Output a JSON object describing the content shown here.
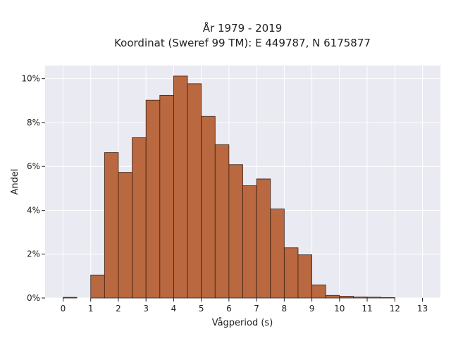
{
  "chart_data": {
    "type": "bar",
    "title": [
      "År 1979 - 2019",
      "Koordinat (Sweref 99 TM): E 449787, N 6175877"
    ],
    "xlabel": "Vågperiod (s)",
    "ylabel": "Andel",
    "bin_width": 0.5,
    "bins": [
      {
        "start": 0.0,
        "value": 0.0003
      },
      {
        "start": 1.0,
        "value": 0.0105
      },
      {
        "start": 1.5,
        "value": 0.0663
      },
      {
        "start": 2.0,
        "value": 0.0573
      },
      {
        "start": 2.5,
        "value": 0.0731
      },
      {
        "start": 3.0,
        "value": 0.0902
      },
      {
        "start": 3.5,
        "value": 0.0924
      },
      {
        "start": 4.0,
        "value": 0.1012
      },
      {
        "start": 4.5,
        "value": 0.0977
      },
      {
        "start": 5.0,
        "value": 0.0828
      },
      {
        "start": 5.5,
        "value": 0.0699
      },
      {
        "start": 6.0,
        "value": 0.0608
      },
      {
        "start": 6.5,
        "value": 0.0512
      },
      {
        "start": 7.0,
        "value": 0.0543
      },
      {
        "start": 7.5,
        "value": 0.0406
      },
      {
        "start": 8.0,
        "value": 0.0229
      },
      {
        "start": 8.5,
        "value": 0.0197
      },
      {
        "start": 9.0,
        "value": 0.006
      },
      {
        "start": 9.5,
        "value": 0.0012
      },
      {
        "start": 10.0,
        "value": 0.0008
      },
      {
        "start": 10.5,
        "value": 0.0005
      },
      {
        "start": 11.0,
        "value": 0.0004
      },
      {
        "start": 11.5,
        "value": 0.0002
      }
    ],
    "xlim": [
      -0.65,
      13.65
    ],
    "ylim": [
      0,
      0.106
    ],
    "xticks": [
      0,
      1,
      2,
      3,
      4,
      5,
      6,
      7,
      8,
      9,
      10,
      11,
      12,
      13
    ],
    "xtick_labels": [
      "0",
      "1",
      "2",
      "3",
      "4",
      "5",
      "6",
      "7",
      "8",
      "9",
      "10",
      "11",
      "12",
      "13"
    ],
    "yticks": [
      0,
      0.02,
      0.04,
      0.06,
      0.08,
      0.1
    ],
    "ytick_labels": [
      "0%",
      "2%",
      "4%",
      "6%",
      "8%",
      "10%"
    ],
    "grid": true,
    "colors": {
      "bar_fill": "#b9683f",
      "bar_edge": "#3b2016",
      "plot_background": "#eaeaf2",
      "grid": "#ffffff"
    }
  }
}
